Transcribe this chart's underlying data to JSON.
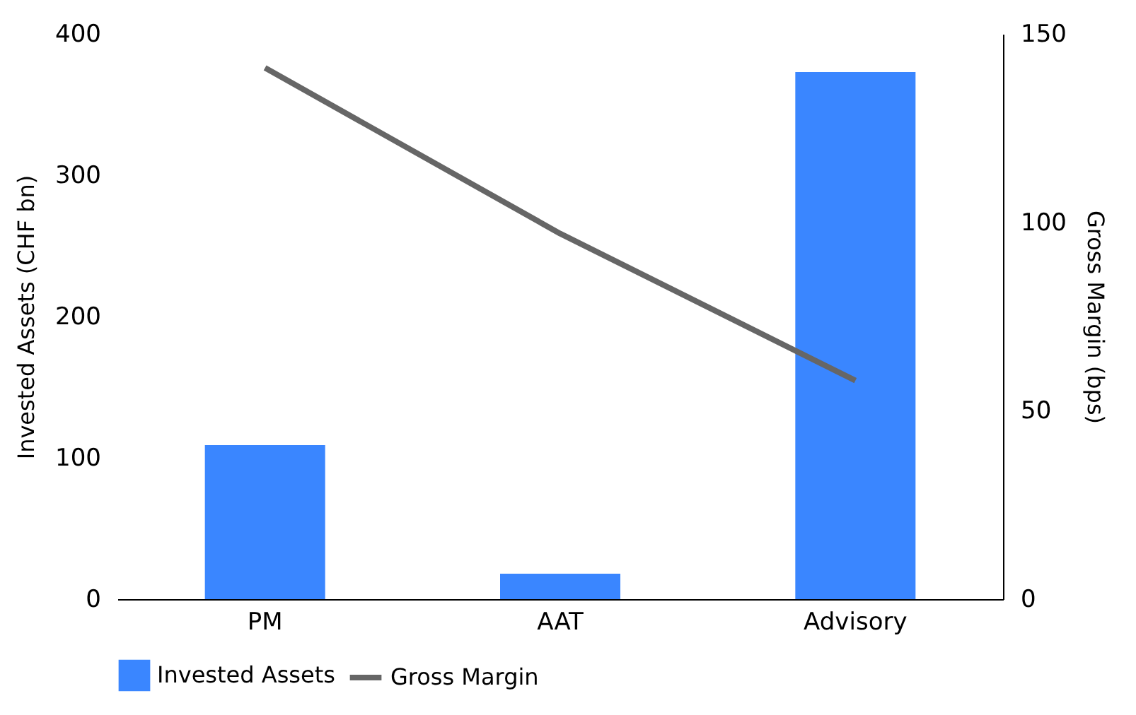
{
  "chart_data": {
    "type": "bar",
    "categories": [
      "PM",
      "AAT",
      "Advisory"
    ],
    "ylabel": "Invested Assets (CHF bn)",
    "y2label": "Gross Margin (bps)",
    "ylim": [
      0,
      400
    ],
    "yticks": [
      0,
      100,
      200,
      300,
      400
    ],
    "y2lim": [
      0,
      150
    ],
    "y2ticks": [
      0,
      50,
      100,
      150
    ],
    "legend": "bottom",
    "grid": false,
    "series": [
      {
        "name": "Invested Assets",
        "color": "#3a86ff",
        "values": [
          109,
          18,
          373
        ]
      },
      {
        "name": "Gross Margin",
        "type": "line",
        "axis": "y2",
        "color": "#666666",
        "values": [
          141,
          97,
          58
        ]
      }
    ]
  }
}
